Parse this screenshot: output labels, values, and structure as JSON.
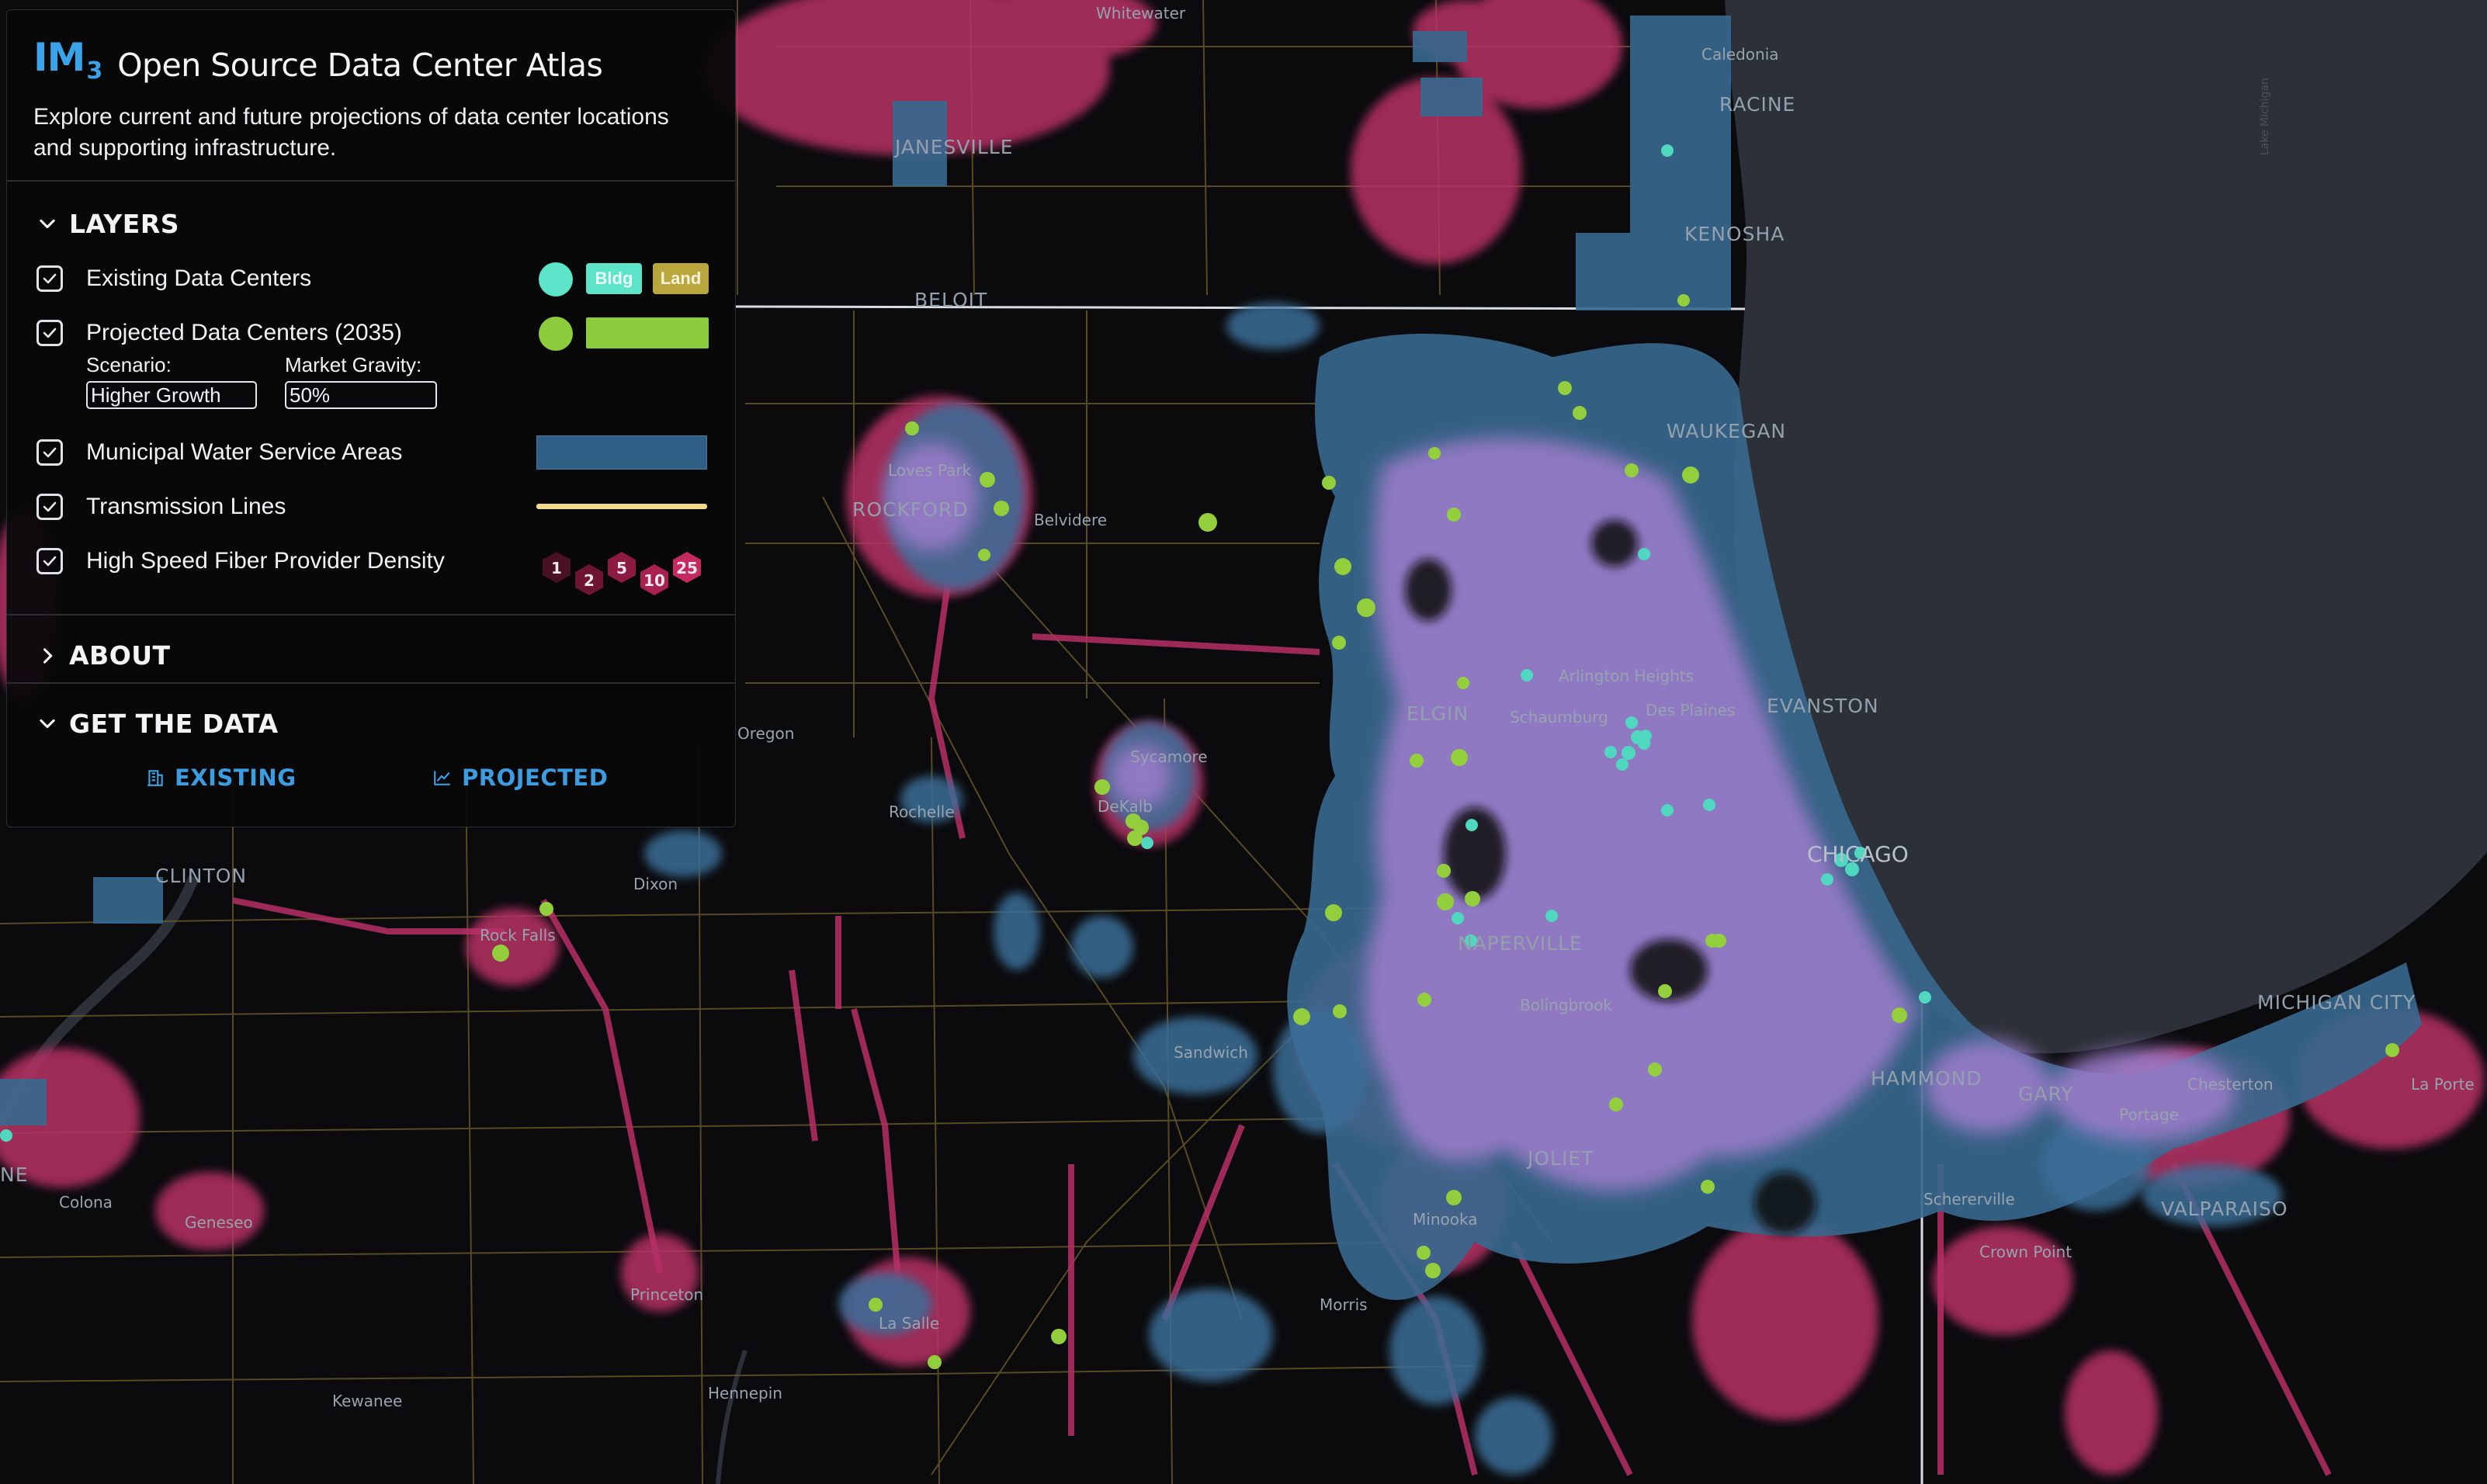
{
  "header": {
    "logo_text": "IM",
    "logo_sub": "3",
    "title": "Open Source Data Center Atlas",
    "description": "Explore current and future projections of data center locations and supporting infrastructure."
  },
  "layers": {
    "heading": "LAYERS",
    "expanded": true,
    "items": [
      {
        "label": "Existing Data Centers",
        "checked": true,
        "legend": {
          "bldg": "Bldg",
          "land": "Land"
        },
        "color": "#5ce3c8",
        "land_color": "#b9a63c"
      },
      {
        "label": "Projected Data Centers (2035)",
        "checked": true,
        "color": "#8ccc3c"
      },
      {
        "label": "Municipal Water Service Areas",
        "checked": true,
        "color": "#2f5f85"
      },
      {
        "label": "Transmission Lines",
        "checked": true,
        "color": "#f2d98c"
      },
      {
        "label": "High Speed Fiber Provider Density",
        "checked": true,
        "legend_values": [
          "1",
          "2",
          "5",
          "10",
          "25"
        ]
      }
    ],
    "scenario": {
      "label": "Scenario:",
      "value": "Higher Growth"
    },
    "market_gravity": {
      "label": "Market Gravity:",
      "value": "50%"
    }
  },
  "about": {
    "heading": "ABOUT",
    "expanded": false
  },
  "get_data": {
    "heading": "GET THE DATA",
    "expanded": true,
    "existing_label": "EXISTING",
    "projected_label": "PROJECTED"
  },
  "map": {
    "colors": {
      "water": "#2c3038",
      "land": "#0b0b0d",
      "fiber": "#c0306a",
      "service": "#3a6e98",
      "overlap": "#9c78c8",
      "existing": "#4fd8bf",
      "projected": "#93cf3c",
      "lines": "#a08a4a"
    },
    "cities": [
      "Whitewater",
      "Caledonia",
      "RACINE",
      "JANESVILLE",
      "KENOSHA",
      "BELOIT",
      "WAUKEGAN",
      "Loves Park",
      "ROCKFORD",
      "Belvidere",
      "Arlington Heights",
      "Des Plaines",
      "EVANSTON",
      "ELGIN",
      "Schaumburg",
      "Sycamore",
      "DeKalb",
      "Rochelle",
      "CHICAGO",
      "CLINTON",
      "Dixon",
      "Rock Falls",
      "NAPERVILLE",
      "Bolingbrook",
      "Sandwich",
      "MICHIGAN CITY",
      "HAMMOND",
      "GARY",
      "Chesterton",
      "Portage",
      "La Porte",
      "JOLIET",
      "Schererville",
      "VALPARAISO",
      "Minooka",
      "Colona",
      "Geneseo",
      "Crown Point",
      "Princeton",
      "La Salle",
      "Morris",
      "Kewanee",
      "Hennepin",
      "Oregon",
      "NE"
    ],
    "attribution": "Lake Michigan"
  }
}
